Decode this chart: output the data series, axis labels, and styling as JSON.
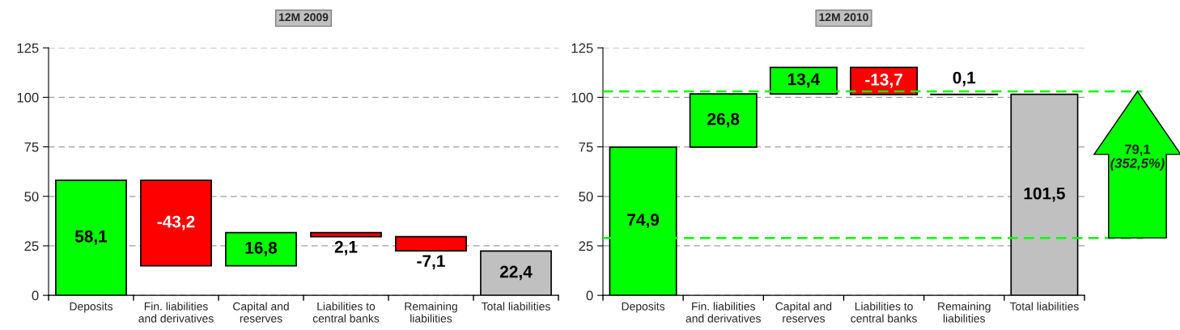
{
  "chart_data": [
    {
      "type": "bar",
      "title": "12M 2009",
      "categories": [
        "Deposits",
        "Fin. liabilities\nand derivatives",
        "Capital and\nreserves",
        "Liabilities to\ncentral banks",
        "Remaining\nliabilities",
        "Total liabilities"
      ],
      "values": [
        58.1,
        -43.2,
        16.8,
        -2.1,
        -7.1,
        22.4
      ],
      "base": [
        0,
        58.1,
        14.9,
        31.7,
        29.6,
        0
      ],
      "colors": [
        "#00ff00",
        "#ff0000",
        "#00ff00",
        "#ff0000",
        "#ff0000",
        "#c0c0c0"
      ],
      "value_labels": [
        "58,1",
        "-43,2",
        "16,8",
        "2,1",
        "-7,1",
        "22,4"
      ],
      "ylim": [
        0,
        125
      ],
      "yticks": [
        0,
        25,
        50,
        75,
        100,
        125
      ],
      "grid": "y",
      "legend": false
    },
    {
      "type": "bar",
      "title": "12M 2010",
      "categories": [
        "Deposits",
        "Fin. liabilities\nand derivatives",
        "Capital and\nreserves",
        "Liabilities to\ncentral banks",
        "Remaining\nliabilities",
        "Total liabilities"
      ],
      "values": [
        74.9,
        26.8,
        13.4,
        -13.7,
        0.1,
        101.5
      ],
      "base": [
        0,
        74.9,
        101.7,
        115.1,
        101.4,
        0
      ],
      "colors": [
        "#00ff00",
        "#00ff00",
        "#00ff00",
        "#ff0000",
        "#000000",
        "#c0c0c0"
      ],
      "value_labels": [
        "74,9",
        "26,8",
        "13,4",
        "-13,7",
        "0,1",
        "101,5"
      ],
      "ylim": [
        0,
        125
      ],
      "yticks": [
        0,
        25,
        50,
        75,
        100,
        125
      ],
      "grid": "y",
      "legend": false,
      "ref_lines": [
        {
          "axis": "y",
          "value": 29,
          "color": "#00ff00",
          "line_style": "dashed"
        },
        {
          "axis": "y",
          "value": 103,
          "color": "#00ff00",
          "line_style": "dashed"
        }
      ],
      "annotations": [
        "79,1",
        "(352,5%)"
      ]
    }
  ]
}
